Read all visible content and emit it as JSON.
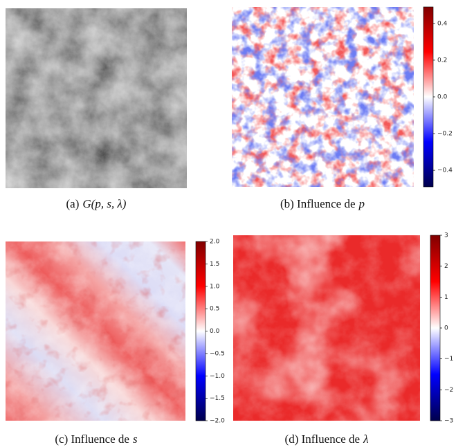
{
  "panels": [
    {
      "caption": "(a)",
      "math": "G(p, s, λ)"
    },
    {
      "caption": "(b) Influence de",
      "math": "p",
      "colorbar": {
        "ylim": [
          -0.49,
          0.49
        ],
        "yticks": [
          {
            "value": -0.4,
            "label": "−0.4"
          },
          {
            "value": -0.2,
            "label": "−0.2"
          },
          {
            "value": 0,
            "label": "0.0"
          },
          0.2,
          0.4
        ]
      }
    },
    {
      "caption": "(c) Influence de",
      "math": "s",
      "colorbar": {
        "ylim": [
          -2,
          2
        ],
        "yticks": [
          {
            "value": -2,
            "label": "−2.0"
          },
          {
            "value": -1.5,
            "label": "−1.5"
          },
          {
            "value": -1,
            "label": "−1.0"
          },
          {
            "value": -0.5,
            "label": "−0.5"
          },
          {
            "value": 0,
            "label": "0.0"
          },
          0.5,
          {
            "value": 1,
            "label": "1.0"
          },
          1.5,
          {
            "value": 2,
            "label": "2.0"
          }
        ]
      }
    },
    {
      "caption": "(d) Influence de",
      "math": "λ",
      "colorbar": {
        "ylim": [
          -3,
          3
        ],
        "yticks": [
          {
            "value": -3,
            "label": "−3"
          },
          {
            "value": -2,
            "label": "−2"
          },
          {
            "value": -1,
            "label": "−1"
          },
          0,
          1,
          2,
          3
        ]
      }
    }
  ]
}
